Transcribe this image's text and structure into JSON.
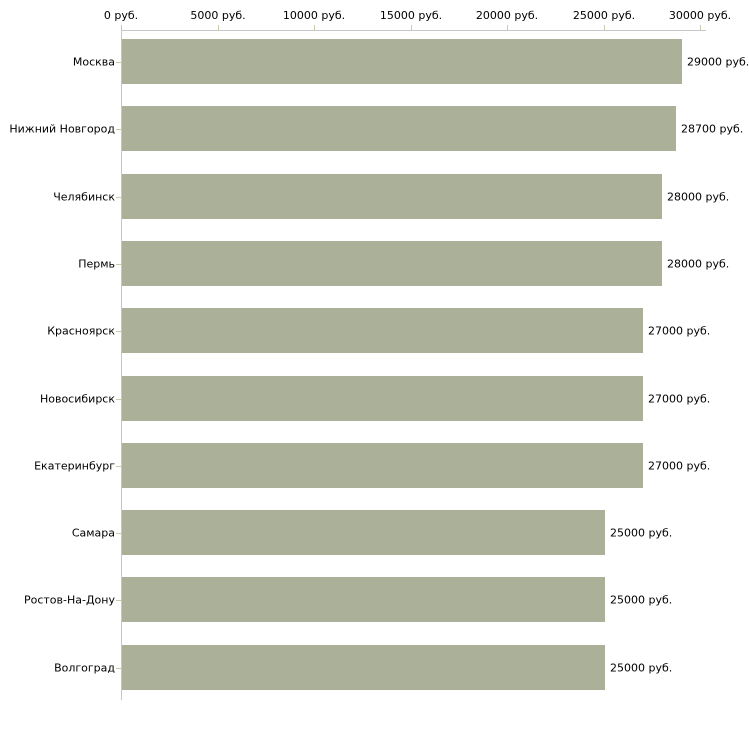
{
  "chart_data": {
    "type": "bar",
    "orientation": "horizontal",
    "title": "",
    "xlabel": "",
    "ylabel": "",
    "categories": [
      "Москва",
      "Нижний Новгород",
      "Челябинск",
      "Пермь",
      "Красноярск",
      "Новосибирск",
      "Екатеринбург",
      "Самара",
      "Ростов-На-Дону",
      "Волгоград"
    ],
    "values": [
      29000,
      28700,
      28000,
      28000,
      27000,
      27000,
      27000,
      25000,
      25000,
      25000
    ],
    "value_labels": [
      "29000 руб.",
      "28700 руб.",
      "28000 руб.",
      "28000 руб.",
      "27000 руб.",
      "27000 руб.",
      "27000 руб.",
      "25000 руб.",
      "25000 руб.",
      "25000 руб."
    ],
    "x_axis": {
      "position": "top",
      "range": [
        0,
        30000
      ],
      "ticks": [
        0,
        5000,
        10000,
        15000,
        20000,
        25000,
        30000
      ],
      "tick_labels": [
        "0 руб.",
        "5000 руб.",
        "10000 руб.",
        "15000 руб.",
        "20000 руб.",
        "25000 руб.",
        "30000 руб."
      ]
    },
    "legend": false,
    "grid": false,
    "colors": {
      "bar": "#aab198",
      "axis_line": "#c6c6c6",
      "tick": "#c9cbaa",
      "text": "#000000",
      "background": "#ffffff"
    }
  }
}
